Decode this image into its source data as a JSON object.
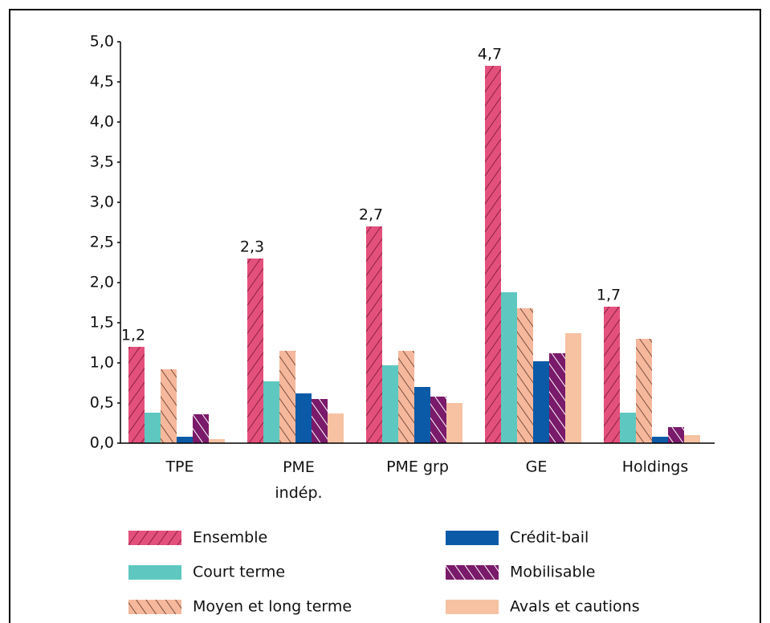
{
  "chart_data": {
    "type": "bar",
    "categories": [
      "TPE",
      "PME indép.",
      "PME grp",
      "GE",
      "Holdings"
    ],
    "series": [
      {
        "name": "Ensemble",
        "color": "#e4507c",
        "hatch": "/",
        "hatch_color": "#8a2040",
        "values": [
          1.2,
          2.3,
          2.7,
          4.7,
          1.7
        ],
        "value_labels": [
          "1,2",
          "2,3",
          "2,7",
          "4,7",
          "1,7"
        ]
      },
      {
        "name": "Court terme",
        "color": "#5ec8c0",
        "values": [
          0.38,
          0.77,
          0.97,
          1.88,
          0.38
        ]
      },
      {
        "name": "Moyen et long terme",
        "color": "#f6b89c",
        "hatch": "\\",
        "hatch_color": "#7a5040",
        "values": [
          0.92,
          1.15,
          1.15,
          1.68,
          1.3
        ]
      },
      {
        "name": "Crédit-bail",
        "color": "#0b5aa8",
        "values": [
          0.08,
          0.62,
          0.7,
          1.02,
          0.08
        ]
      },
      {
        "name": "Mobilisable",
        "color": "#7a1a6a",
        "hatch": "\\",
        "hatch_color": "#ffffff",
        "values": [
          0.36,
          0.55,
          0.58,
          1.12,
          0.2
        ]
      },
      {
        "name": "Avals et cautions",
        "color": "#f6c2a2",
        "values": [
          0.05,
          0.37,
          0.5,
          1.37,
          0.1
        ]
      }
    ],
    "ylim": [
      0,
      5
    ],
    "yticks": [
      {
        "value": 0,
        "label": "0,0"
      },
      {
        "value": 0.5,
        "label": "0,5"
      },
      {
        "value": 1,
        "label": "1,0"
      },
      {
        "value": 1.5,
        "label": "1,5"
      },
      {
        "value": 2,
        "label": "2,0"
      },
      {
        "value": 2.5,
        "label": "2,5"
      },
      {
        "value": 3,
        "label": "3,0"
      },
      {
        "value": 3.5,
        "label": "3,5"
      },
      {
        "value": 4,
        "label": "4,0"
      },
      {
        "value": 4.5,
        "label": "4,5"
      },
      {
        "value": 5,
        "label": "5,0"
      }
    ],
    "grid": false,
    "legend": "bottom"
  }
}
